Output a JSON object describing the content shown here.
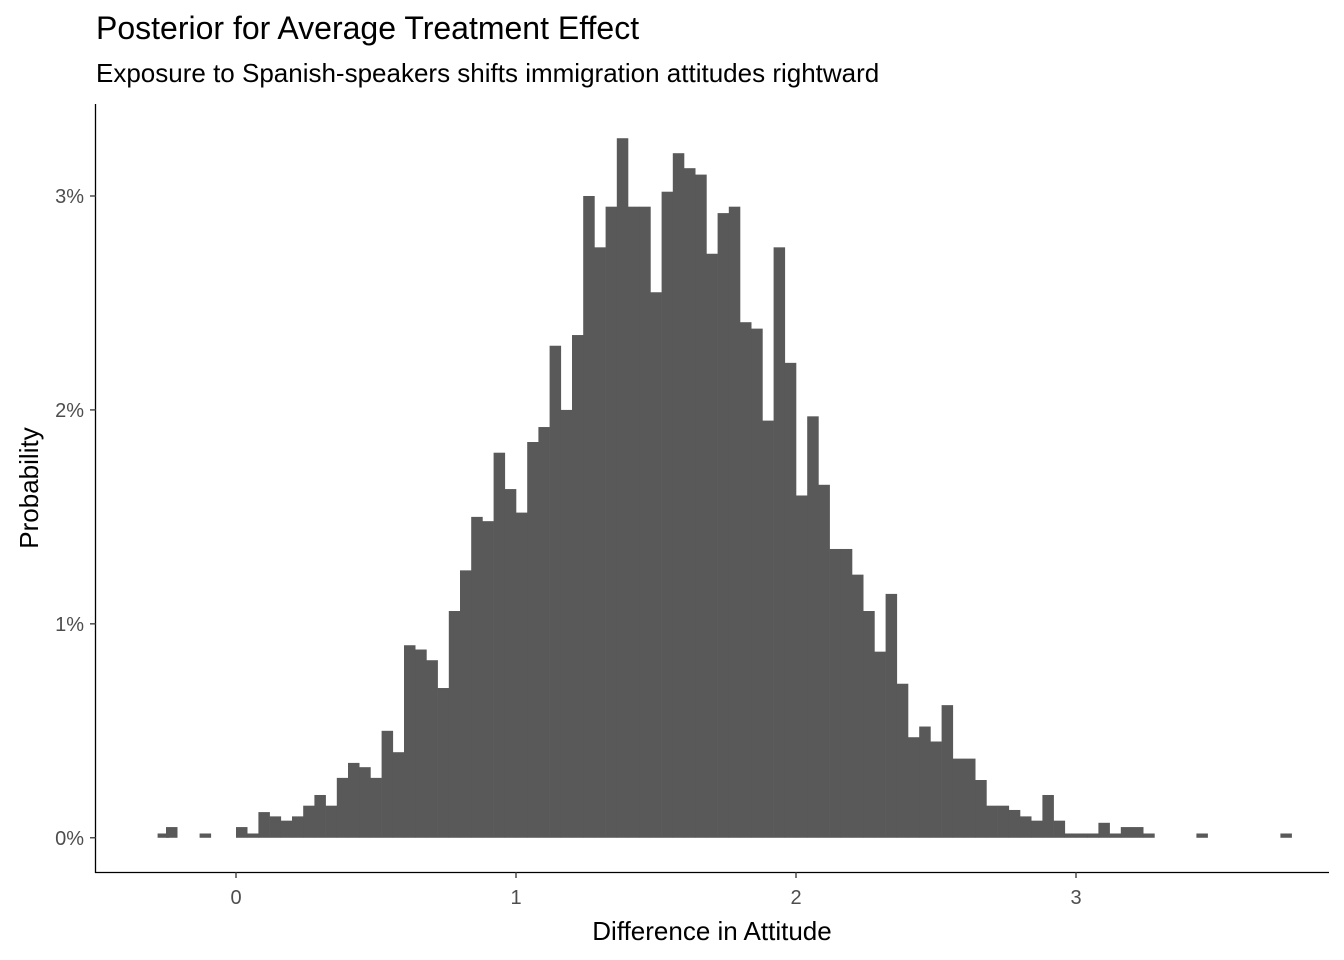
{
  "chart_data": {
    "type": "bar",
    "title": "Posterior for Average Treatment Effect",
    "subtitle": "Exposure to Spanish-speakers shifts immigration attitudes rightward",
    "xlabel": "Difference in Attitude",
    "ylabel": "Probability",
    "x_ticks": [
      0,
      1,
      2,
      3
    ],
    "x_tick_labels": [
      "0",
      "1",
      "2",
      "3"
    ],
    "y_ticks": [
      0,
      0.01,
      0.02,
      0.03
    ],
    "y_tick_labels": [
      "0%",
      "1%",
      "2%",
      "3%"
    ],
    "xlim": [
      -0.5,
      3.9
    ],
    "ylim": [
      -0.0016,
      0.0343
    ],
    "bar_color": "#595959",
    "grid": false,
    "bins": [
      [
        -0.28,
        0.0002
      ],
      [
        -0.25,
        0.0005
      ],
      [
        -0.13,
        0.0002
      ],
      [
        0.0,
        0.0005
      ],
      [
        0.04,
        0.0002
      ],
      [
        0.08,
        0.0012
      ],
      [
        0.12,
        0.001
      ],
      [
        0.16,
        0.0008
      ],
      [
        0.2,
        0.001
      ],
      [
        0.24,
        0.0015
      ],
      [
        0.28,
        0.002
      ],
      [
        0.32,
        0.0015
      ],
      [
        0.36,
        0.0028
      ],
      [
        0.4,
        0.0035
      ],
      [
        0.44,
        0.0033
      ],
      [
        0.48,
        0.0028
      ],
      [
        0.52,
        0.005
      ],
      [
        0.56,
        0.004
      ],
      [
        0.6,
        0.009
      ],
      [
        0.64,
        0.0088
      ],
      [
        0.68,
        0.0083
      ],
      [
        0.72,
        0.007
      ],
      [
        0.76,
        0.0106
      ],
      [
        0.8,
        0.0125
      ],
      [
        0.84,
        0.015
      ],
      [
        0.88,
        0.0148
      ],
      [
        0.92,
        0.018
      ],
      [
        0.96,
        0.0163
      ],
      [
        1.0,
        0.0152
      ],
      [
        1.04,
        0.0185
      ],
      [
        1.08,
        0.0192
      ],
      [
        1.12,
        0.023
      ],
      [
        1.16,
        0.02
      ],
      [
        1.2,
        0.0235
      ],
      [
        1.24,
        0.03
      ],
      [
        1.28,
        0.0276
      ],
      [
        1.32,
        0.0295
      ],
      [
        1.36,
        0.0327
      ],
      [
        1.4,
        0.0295
      ],
      [
        1.44,
        0.0295
      ],
      [
        1.48,
        0.0255
      ],
      [
        1.52,
        0.0302
      ],
      [
        1.56,
        0.032
      ],
      [
        1.6,
        0.0313
      ],
      [
        1.64,
        0.031
      ],
      [
        1.68,
        0.0273
      ],
      [
        1.72,
        0.0292
      ],
      [
        1.76,
        0.0295
      ],
      [
        1.8,
        0.0241
      ],
      [
        1.84,
        0.0238
      ],
      [
        1.88,
        0.0195
      ],
      [
        1.92,
        0.0276
      ],
      [
        1.96,
        0.0222
      ],
      [
        2.0,
        0.016
      ],
      [
        2.04,
        0.0197
      ],
      [
        2.08,
        0.0165
      ],
      [
        2.12,
        0.0135
      ],
      [
        2.16,
        0.0135
      ],
      [
        2.2,
        0.0123
      ],
      [
        2.24,
        0.0106
      ],
      [
        2.28,
        0.0087
      ],
      [
        2.32,
        0.0114
      ],
      [
        2.36,
        0.0072
      ],
      [
        2.4,
        0.0047
      ],
      [
        2.44,
        0.0052
      ],
      [
        2.48,
        0.0045
      ],
      [
        2.52,
        0.0062
      ],
      [
        2.56,
        0.0037
      ],
      [
        2.6,
        0.0037
      ],
      [
        2.64,
        0.0027
      ],
      [
        2.68,
        0.0015
      ],
      [
        2.72,
        0.0015
      ],
      [
        2.76,
        0.0013
      ],
      [
        2.8,
        0.001
      ],
      [
        2.84,
        0.0008
      ],
      [
        2.88,
        0.002
      ],
      [
        2.92,
        0.0008
      ],
      [
        2.96,
        0.0002
      ],
      [
        3.0,
        0.0002
      ],
      [
        3.04,
        0.0002
      ],
      [
        3.08,
        0.0007
      ],
      [
        3.12,
        0.0002
      ],
      [
        3.16,
        0.0005
      ],
      [
        3.2,
        0.0005
      ],
      [
        3.24,
        0.0002
      ],
      [
        3.43,
        0.0002
      ],
      [
        3.73,
        0.0002
      ]
    ]
  }
}
